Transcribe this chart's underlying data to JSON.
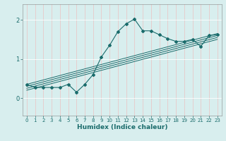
{
  "xlabel": "Humidex (Indice chaleur)",
  "xlim": [
    -0.5,
    23.5
  ],
  "ylim": [
    -0.45,
    2.4
  ],
  "yticks": [
    0,
    1,
    2
  ],
  "xticks": [
    0,
    1,
    2,
    3,
    4,
    5,
    6,
    7,
    8,
    9,
    10,
    11,
    12,
    13,
    14,
    15,
    16,
    17,
    18,
    19,
    20,
    21,
    22,
    23
  ],
  "bg_color": "#d8eeee",
  "grid_color": "#c0dede",
  "line_color": "#1a6b6b",
  "series_main": [
    0.35,
    0.27,
    0.27,
    0.27,
    0.27,
    0.35,
    0.15,
    0.35,
    0.6,
    1.05,
    1.35,
    1.7,
    1.9,
    2.02,
    1.72,
    1.72,
    1.62,
    1.52,
    1.45,
    1.45,
    1.5,
    1.32,
    1.6,
    1.62
  ],
  "lin_x0": 0,
  "lin_x1": 23,
  "lin_lines": [
    [
      0.35,
      1.65
    ],
    [
      0.3,
      1.6
    ],
    [
      0.25,
      1.55
    ],
    [
      0.2,
      1.5
    ]
  ]
}
